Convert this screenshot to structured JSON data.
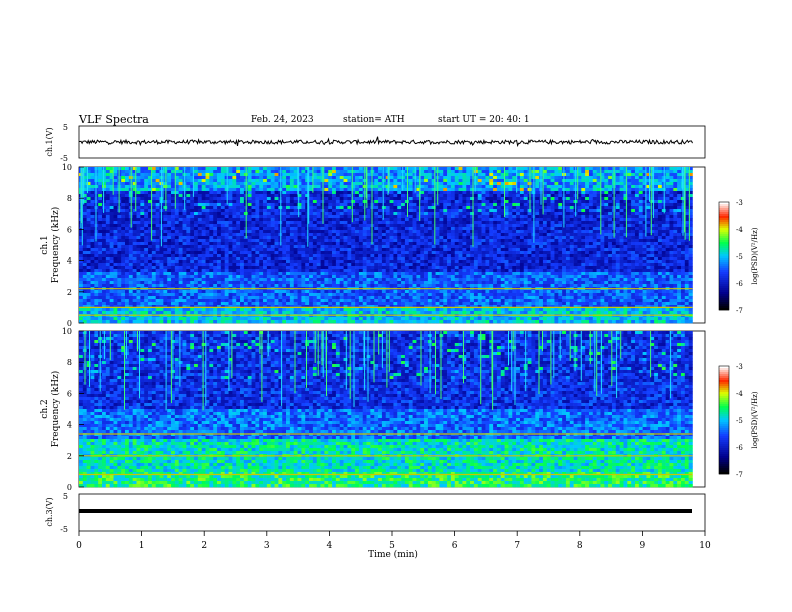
{
  "header": {
    "title": "VLF  Spectra",
    "date": "Feb. 24, 2023",
    "station": "station= ATH",
    "start": "start  UT  =    20: 40: 1"
  },
  "chart_data": [
    {
      "type": "line",
      "panel": "ch1-waveform",
      "ylabel": "ch.1(V)",
      "ylim": [
        -5,
        5
      ],
      "yticks": [
        "5",
        "-5"
      ],
      "xlim": [
        0,
        10
      ],
      "series": [
        {
          "values_note": "noisy waveform around 0 V",
          "mean": 0.0,
          "amplitude": 1.2,
          "x_end": 9.8
        }
      ],
      "color": "#000000"
    },
    {
      "type": "heatmap",
      "panel": "ch1-spectrogram",
      "ylabel": "ch.1\nFrequency  (kHz)",
      "ylabel_top": "ch.1",
      "ylabel_bottom": "Frequency  (kHz)",
      "ylim": [
        0,
        10
      ],
      "yticks": [
        "0",
        "2",
        "4",
        "6",
        "8",
        "10"
      ],
      "xlim": [
        0,
        9.8
      ],
      "colorbar": {
        "label": "log(PSD)(V²/Hz)",
        "ticks": [
          "-3",
          "-4",
          "-5",
          "-6",
          "-7"
        ],
        "range": [
          -7,
          -3
        ]
      }
    },
    {
      "type": "heatmap",
      "panel": "ch2-spectrogram",
      "ylabel_top": "ch.2",
      "ylabel_bottom": "Frequency  (kHz)",
      "ylim": [
        0,
        10
      ],
      "yticks": [
        "0",
        "2",
        "4",
        "6",
        "8",
        "10"
      ],
      "xlim": [
        0,
        9.8
      ],
      "colorbar": {
        "label": "log(PSD)(V²/Hz)",
        "ticks": [
          "-3",
          "-4",
          "-5",
          "-6",
          "-7"
        ],
        "range": [
          -7,
          -3
        ]
      }
    },
    {
      "type": "line",
      "panel": "ch3-waveform",
      "ylabel": "ch.3(V)",
      "ylim": [
        -5,
        5
      ],
      "yticks": [
        "5",
        "-5"
      ],
      "xlim": [
        0,
        10
      ],
      "series": [
        {
          "values_note": "flat signal",
          "mean": -1.5,
          "x_end": 9.8
        }
      ],
      "xlabel": "Time  (min)",
      "xticks": [
        "0",
        "1",
        "2",
        "3",
        "4",
        "5",
        "6",
        "7",
        "8",
        "9",
        "10"
      ]
    }
  ]
}
